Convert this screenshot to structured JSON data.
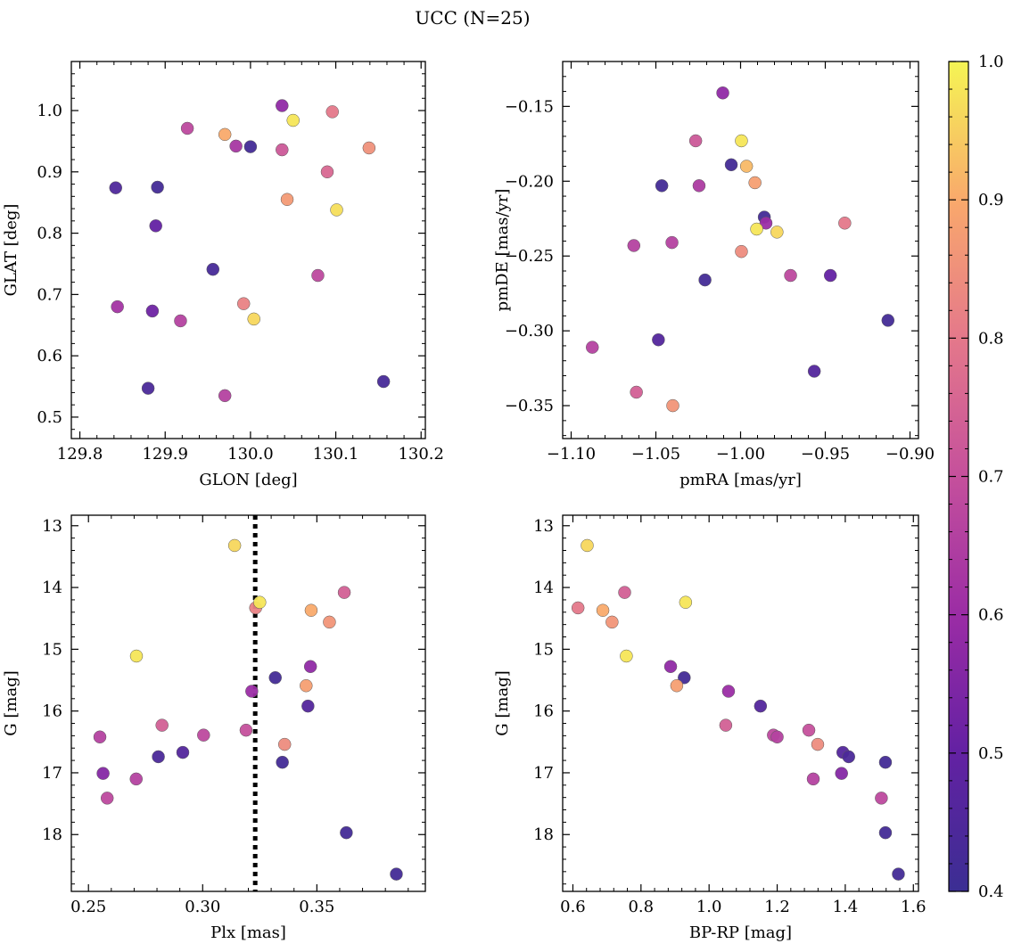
{
  "figure": {
    "title": "UCC (N=25)"
  },
  "colorbar": {
    "colormap": "plasma",
    "range": [
      0.4,
      1.0
    ],
    "ticks": [
      0.4,
      0.5,
      0.6,
      0.7,
      0.8,
      0.9,
      1.0
    ],
    "tick_labels": [
      "0.4",
      "0.5",
      "0.6",
      "0.7",
      "0.8",
      "0.9",
      "1.0"
    ]
  },
  "chart_data": [
    {
      "type": "scatter",
      "id": "glon-glat",
      "xlabel": "GLON [deg]",
      "ylabel": "GLAT [deg]",
      "xlim": [
        129.79,
        130.205
      ],
      "ylim": [
        0.465,
        1.08
      ],
      "x_ticks": [
        129.8,
        129.9,
        130.0,
        130.1,
        130.2
      ],
      "x_tick_labels": [
        "129.8",
        "129.9",
        "130.0",
        "130.1",
        "130.2"
      ],
      "y_ticks": [
        0.5,
        0.6,
        0.7,
        0.8,
        0.9,
        1.0
      ],
      "y_tick_labels": [
        "0.5",
        "0.6",
        "0.7",
        "0.8",
        "0.9",
        "1.0"
      ],
      "points": [
        {
          "x": 129.842,
          "y": 0.874,
          "c": 0.45
        },
        {
          "x": 129.891,
          "y": 0.875,
          "c": 0.42
        },
        {
          "x": 129.889,
          "y": 0.812,
          "c": 0.5
        },
        {
          "x": 129.844,
          "y": 0.68,
          "c": 0.62
        },
        {
          "x": 129.885,
          "y": 0.673,
          "c": 0.52
        },
        {
          "x": 129.918,
          "y": 0.657,
          "c": 0.66
        },
        {
          "x": 129.88,
          "y": 0.547,
          "c": 0.44
        },
        {
          "x": 129.926,
          "y": 0.971,
          "c": 0.68
        },
        {
          "x": 129.97,
          "y": 0.961,
          "c": 0.9
        },
        {
          "x": 129.983,
          "y": 0.942,
          "c": 0.63
        },
        {
          "x": 130.0,
          "y": 0.941,
          "c": 0.42
        },
        {
          "x": 129.956,
          "y": 0.741,
          "c": 0.43
        },
        {
          "x": 129.992,
          "y": 0.685,
          "c": 0.82
        },
        {
          "x": 130.004,
          "y": 0.66,
          "c": 0.96
        },
        {
          "x": 129.97,
          "y": 0.535,
          "c": 0.66
        },
        {
          "x": 130.037,
          "y": 1.008,
          "c": 0.58
        },
        {
          "x": 130.05,
          "y": 0.984,
          "c": 0.98
        },
        {
          "x": 130.037,
          "y": 0.936,
          "c": 0.72
        },
        {
          "x": 130.043,
          "y": 0.855,
          "c": 0.87
        },
        {
          "x": 130.096,
          "y": 0.998,
          "c": 0.8
        },
        {
          "x": 130.09,
          "y": 0.9,
          "c": 0.76
        },
        {
          "x": 130.101,
          "y": 0.838,
          "c": 0.97
        },
        {
          "x": 130.079,
          "y": 0.731,
          "c": 0.68
        },
        {
          "x": 130.139,
          "y": 0.939,
          "c": 0.85
        },
        {
          "x": 130.156,
          "y": 0.558,
          "c": 0.43
        }
      ]
    },
    {
      "type": "scatter",
      "id": "pmra-pmde",
      "xlabel": "pmRA [mas/yr]",
      "ylabel": "pmDE [mas/yr]",
      "xlim": [
        -1.105,
        -0.895
      ],
      "ylim": [
        -0.372,
        -0.12
      ],
      "x_ticks": [
        -1.1,
        -1.05,
        -1.0,
        -0.95,
        -0.9
      ],
      "x_tick_labels": [
        "−1.10",
        "−1.05",
        "−1.00",
        "−0.95",
        "−0.90"
      ],
      "y_ticks": [
        -0.35,
        -0.3,
        -0.25,
        -0.2,
        -0.15
      ],
      "y_tick_labels": [
        "−0.35",
        "−0.30",
        "−0.25",
        "−0.20",
        "−0.15"
      ],
      "points": [
        {
          "x": -1.0105,
          "y": -0.141,
          "c": 0.58
        },
        {
          "x": -1.0265,
          "y": -0.173,
          "c": 0.72
        },
        {
          "x": -0.9995,
          "y": -0.173,
          "c": 0.98
        },
        {
          "x": -1.0055,
          "y": -0.189,
          "c": 0.42
        },
        {
          "x": -0.9965,
          "y": -0.19,
          "c": 0.92
        },
        {
          "x": -0.9915,
          "y": -0.201,
          "c": 0.88
        },
        {
          "x": -1.0465,
          "y": -0.203,
          "c": 0.42
        },
        {
          "x": -1.0245,
          "y": -0.203,
          "c": 0.64
        },
        {
          "x": -0.986,
          "y": -0.224,
          "c": 0.42
        },
        {
          "x": -0.985,
          "y": -0.228,
          "c": 0.6
        },
        {
          "x": -0.9905,
          "y": -0.232,
          "c": 0.98
        },
        {
          "x": -0.9785,
          "y": -0.234,
          "c": 0.96
        },
        {
          "x": -0.9385,
          "y": -0.228,
          "c": 0.8
        },
        {
          "x": -1.063,
          "y": -0.243,
          "c": 0.66
        },
        {
          "x": -1.0405,
          "y": -0.241,
          "c": 0.66
        },
        {
          "x": -0.9995,
          "y": -0.247,
          "c": 0.84
        },
        {
          "x": -1.021,
          "y": -0.266,
          "c": 0.42
        },
        {
          "x": -0.9705,
          "y": -0.263,
          "c": 0.68
        },
        {
          "x": -0.947,
          "y": -0.263,
          "c": 0.5
        },
        {
          "x": -0.913,
          "y": -0.293,
          "c": 0.42
        },
        {
          "x": -1.0485,
          "y": -0.306,
          "c": 0.46
        },
        {
          "x": -1.0875,
          "y": -0.311,
          "c": 0.66
        },
        {
          "x": -0.9565,
          "y": -0.327,
          "c": 0.46
        },
        {
          "x": -1.0615,
          "y": -0.341,
          "c": 0.74
        },
        {
          "x": -1.04,
          "y": -0.35,
          "c": 0.86
        }
      ]
    },
    {
      "type": "scatter",
      "id": "plx-g",
      "xlabel": "Plx [mas]",
      "ylabel": "G [mag]",
      "xlim": [
        0.2425,
        0.3975
      ],
      "ylim": [
        18.92,
        12.83
      ],
      "y_inverted": true,
      "x_ticks": [
        0.25,
        0.3,
        0.35
      ],
      "x_tick_labels": [
        "0.25",
        "0.30",
        "0.35"
      ],
      "y_ticks": [
        13,
        14,
        15,
        16,
        17,
        18
      ],
      "y_tick_labels": [
        "13",
        "14",
        "15",
        "16",
        "17",
        "18"
      ],
      "vline": {
        "x": 0.323,
        "style": "dotted",
        "color": "#000000"
      },
      "points": [
        {
          "x": 0.314,
          "y": 13.32,
          "c": 0.96
        },
        {
          "x": 0.3232,
          "y": 14.33,
          "c": 0.82
        },
        {
          "x": 0.325,
          "y": 14.24,
          "c": 0.98
        },
        {
          "x": 0.362,
          "y": 14.08,
          "c": 0.74
        },
        {
          "x": 0.3475,
          "y": 14.37,
          "c": 0.9
        },
        {
          "x": 0.3555,
          "y": 14.56,
          "c": 0.86
        },
        {
          "x": 0.271,
          "y": 15.11,
          "c": 0.98
        },
        {
          "x": 0.3472,
          "y": 15.28,
          "c": 0.58
        },
        {
          "x": 0.3318,
          "y": 15.46,
          "c": 0.42
        },
        {
          "x": 0.3453,
          "y": 15.59,
          "c": 0.88
        },
        {
          "x": 0.3215,
          "y": 15.68,
          "c": 0.6
        },
        {
          "x": 0.3461,
          "y": 15.92,
          "c": 0.46
        },
        {
          "x": 0.2822,
          "y": 16.23,
          "c": 0.74
        },
        {
          "x": 0.319,
          "y": 16.31,
          "c": 0.7
        },
        {
          "x": 0.3004,
          "y": 16.39,
          "c": 0.68
        },
        {
          "x": 0.255,
          "y": 16.42,
          "c": 0.66
        },
        {
          "x": 0.3359,
          "y": 16.54,
          "c": 0.84
        },
        {
          "x": 0.2913,
          "y": 16.67,
          "c": 0.46
        },
        {
          "x": 0.2806,
          "y": 16.74,
          "c": 0.44
        },
        {
          "x": 0.3349,
          "y": 16.83,
          "c": 0.42
        },
        {
          "x": 0.2564,
          "y": 17.01,
          "c": 0.56
        },
        {
          "x": 0.2709,
          "y": 17.1,
          "c": 0.66
        },
        {
          "x": 0.2582,
          "y": 17.41,
          "c": 0.68
        },
        {
          "x": 0.3629,
          "y": 17.97,
          "c": 0.42
        },
        {
          "x": 0.3848,
          "y": 18.64,
          "c": 0.42
        }
      ]
    },
    {
      "type": "scatter",
      "id": "bprp-g",
      "xlabel": "BP-RP [mag]",
      "ylabel": "G [mag]",
      "xlim": [
        0.57,
        1.615
      ],
      "ylim": [
        18.92,
        12.83
      ],
      "y_inverted": true,
      "x_ticks": [
        0.6,
        0.8,
        1.0,
        1.2,
        1.4,
        1.6
      ],
      "x_tick_labels": [
        "0.6",
        "0.8",
        "1.0",
        "1.2",
        "1.4",
        "1.6"
      ],
      "y_ticks": [
        13,
        14,
        15,
        16,
        17,
        18
      ],
      "y_tick_labels": [
        "13",
        "14",
        "15",
        "16",
        "17",
        "18"
      ],
      "points": [
        {
          "x": 0.642,
          "y": 13.32,
          "c": 0.96
        },
        {
          "x": 0.615,
          "y": 14.33,
          "c": 0.8
        },
        {
          "x": 0.688,
          "y": 14.37,
          "c": 0.9
        },
        {
          "x": 0.715,
          "y": 14.56,
          "c": 0.86
        },
        {
          "x": 0.752,
          "y": 14.08,
          "c": 0.74
        },
        {
          "x": 0.931,
          "y": 14.24,
          "c": 0.98
        },
        {
          "x": 0.757,
          "y": 15.11,
          "c": 0.98
        },
        {
          "x": 0.887,
          "y": 15.28,
          "c": 0.58
        },
        {
          "x": 0.927,
          "y": 15.46,
          "c": 0.42
        },
        {
          "x": 0.905,
          "y": 15.59,
          "c": 0.88
        },
        {
          "x": 1.057,
          "y": 15.68,
          "c": 0.6
        },
        {
          "x": 1.151,
          "y": 15.92,
          "c": 0.46
        },
        {
          "x": 1.049,
          "y": 16.23,
          "c": 0.74
        },
        {
          "x": 1.293,
          "y": 16.31,
          "c": 0.7
        },
        {
          "x": 1.189,
          "y": 16.39,
          "c": 0.68
        },
        {
          "x": 1.2,
          "y": 16.42,
          "c": 0.66
        },
        {
          "x": 1.319,
          "y": 16.54,
          "c": 0.84
        },
        {
          "x": 1.393,
          "y": 16.67,
          "c": 0.46
        },
        {
          "x": 1.41,
          "y": 16.74,
          "c": 0.44
        },
        {
          "x": 1.518,
          "y": 16.83,
          "c": 0.42
        },
        {
          "x": 1.389,
          "y": 17.01,
          "c": 0.56
        },
        {
          "x": 1.306,
          "y": 17.1,
          "c": 0.66
        },
        {
          "x": 1.506,
          "y": 17.41,
          "c": 0.68
        },
        {
          "x": 1.518,
          "y": 17.97,
          "c": 0.42
        },
        {
          "x": 1.556,
          "y": 18.64,
          "c": 0.42
        }
      ]
    }
  ]
}
